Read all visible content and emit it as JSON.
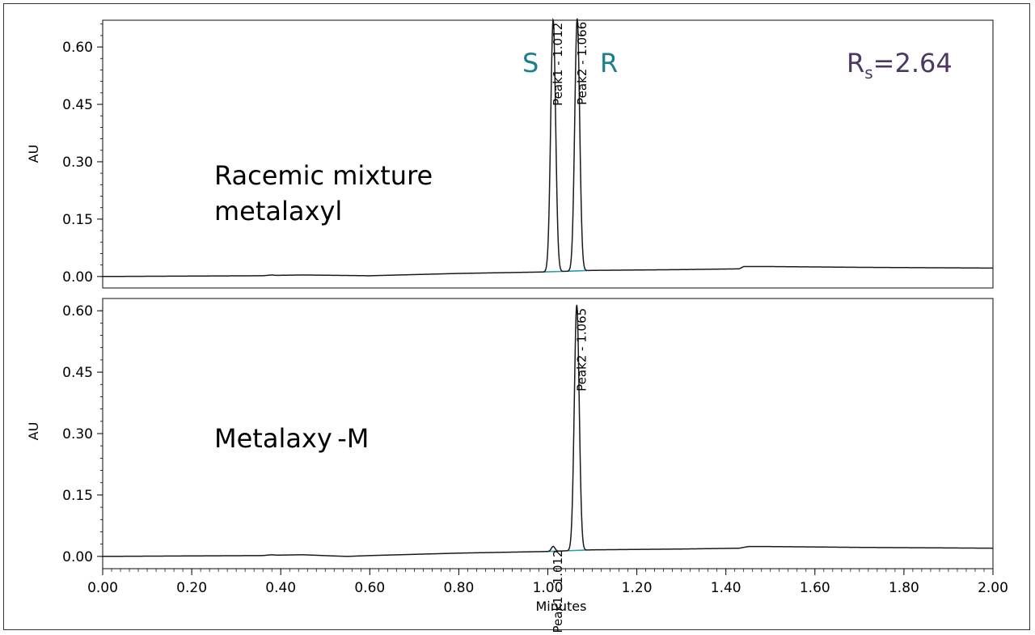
{
  "chart_data": [
    {
      "type": "line",
      "panel": "top",
      "xlabel": "",
      "ylabel": "AU",
      "xlim": [
        0,
        2.0
      ],
      "ylim": [
        -0.03,
        0.67
      ],
      "y_ticks": [
        "0.00",
        "0.15",
        "0.30",
        "0.45",
        "0.60"
      ],
      "y_tick_values": [
        0,
        0.15,
        0.3,
        0.45,
        0.6
      ],
      "annotation_lines": [
        "Racemic mixture",
        "metalaxyl"
      ],
      "enantiomer_labels": {
        "left": "S",
        "right": "R"
      },
      "resolution": {
        "symbol": "R",
        "subscript": "s",
        "value": "=2.64"
      },
      "baseline_color": "#2a9db0",
      "trace_color": "#1a1a1a",
      "peaks": [
        {
          "name": "Peak1",
          "label": "Peak1 - 1.012",
          "time": 1.012,
          "height": 0.66,
          "width": 0.0055
        },
        {
          "name": "Peak2",
          "label": "Peak2 - 1.066",
          "time": 1.066,
          "height": 0.66,
          "width": 0.0055
        }
      ],
      "baseline_points": [
        [
          0,
          0.0
        ],
        [
          0.36,
          0.002
        ],
        [
          0.38,
          0.004
        ],
        [
          0.39,
          0.003
        ],
        [
          0.45,
          0.004
        ],
        [
          0.6,
          0.002
        ],
        [
          0.8,
          0.008
        ],
        [
          1.0,
          0.012
        ],
        [
          1.1,
          0.016
        ],
        [
          1.3,
          0.018
        ],
        [
          1.43,
          0.02
        ],
        [
          1.44,
          0.026
        ],
        [
          1.5,
          0.026
        ],
        [
          1.7,
          0.024
        ],
        [
          2.0,
          0.022
        ]
      ]
    },
    {
      "type": "line",
      "panel": "bottom",
      "xlabel": "Minutes",
      "ylabel": "AU",
      "xlim": [
        0,
        2.0
      ],
      "ylim": [
        -0.03,
        0.63
      ],
      "x_ticks": [
        "0.00",
        "0.20",
        "0.40",
        "0.60",
        "0.80",
        "1.00",
        "1.20",
        "1.40",
        "1.60",
        "1.80",
        "2.00"
      ],
      "x_tick_values": [
        0,
        0.2,
        0.4,
        0.6,
        0.8,
        1.0,
        1.2,
        1.4,
        1.6,
        1.8,
        2.0
      ],
      "y_ticks": [
        "0.00",
        "0.15",
        "0.30",
        "0.45",
        "0.60"
      ],
      "y_tick_values": [
        0,
        0.15,
        0.3,
        0.45,
        0.6
      ],
      "annotation_lines": [
        "Metalaxy -M"
      ],
      "baseline_color": "#2a9db0",
      "trace_color": "#1a1a1a",
      "peaks": [
        {
          "name": "Peak1",
          "label": "Peak1 - 1.012",
          "time": 1.012,
          "height": 0.012,
          "width": 0.004
        },
        {
          "name": "Peak2",
          "label": "Peak2 - 1.065",
          "time": 1.065,
          "height": 0.6,
          "width": 0.0055
        }
      ],
      "baseline_points": [
        [
          0,
          0.0
        ],
        [
          0.36,
          0.002
        ],
        [
          0.38,
          0.004
        ],
        [
          0.39,
          0.003
        ],
        [
          0.45,
          0.004
        ],
        [
          0.52,
          0.001
        ],
        [
          0.55,
          0.0
        ],
        [
          0.6,
          0.002
        ],
        [
          0.8,
          0.008
        ],
        [
          1.0,
          0.012
        ],
        [
          1.1,
          0.016
        ],
        [
          1.3,
          0.018
        ],
        [
          1.43,
          0.02
        ],
        [
          1.45,
          0.024
        ],
        [
          1.5,
          0.024
        ],
        [
          1.7,
          0.022
        ],
        [
          2.0,
          0.02
        ]
      ]
    }
  ]
}
